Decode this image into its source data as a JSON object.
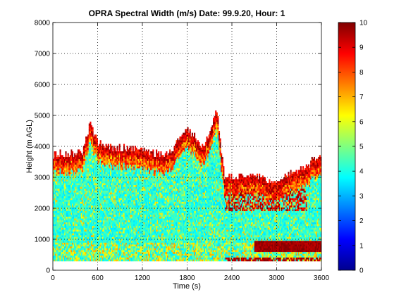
{
  "chart_data": {
    "type": "heatmap",
    "title": "OPRA Spectral Width (m/s)  Date: 99.9.20, Hour: 1",
    "xlabel": "Time (s)",
    "ylabel": "Height (m AGL)",
    "xlim": [
      0,
      3600
    ],
    "ylim": [
      0,
      8000
    ],
    "xticks": [
      0,
      600,
      1200,
      1800,
      2400,
      3000,
      3600
    ],
    "yticks": [
      0,
      1000,
      2000,
      3000,
      4000,
      5000,
      6000,
      7000,
      8000
    ],
    "grid": true,
    "colorbar": {
      "range": [
        0,
        10
      ],
      "ticks": [
        0,
        1,
        2,
        3,
        4,
        5,
        6,
        7,
        8,
        9,
        10
      ],
      "colormap": "jet"
    },
    "height_top_profile": {
      "time": [
        0,
        200,
        400,
        500,
        600,
        800,
        1000,
        1200,
        1400,
        1600,
        1700,
        1800,
        1900,
        2000,
        2100,
        2200,
        2250,
        2300,
        2500,
        2800,
        3000,
        3100,
        3200,
        3400,
        3550,
        3600
      ],
      "top": [
        3700,
        3750,
        3800,
        4700,
        4100,
        3900,
        3950,
        3800,
        3750,
        3800,
        4300,
        4600,
        4300,
        3900,
        4400,
        5200,
        4000,
        3000,
        3000,
        3000,
        2700,
        3000,
        3100,
        3300,
        3700,
        3700
      ]
    },
    "data_bottom_height": 300,
    "layers": [
      {
        "name": "core",
        "range": [
          300,
          3000
        ],
        "values": "mostly 3-5 m/s with scattered 6-7 m/s"
      },
      {
        "name": "top-edge",
        "values": "8-10 m/s"
      },
      {
        "name": "lower-band",
        "time": [
          2700,
          3600
        ],
        "range": [
          600,
          900
        ],
        "values": "9-10 m/s"
      }
    ]
  }
}
